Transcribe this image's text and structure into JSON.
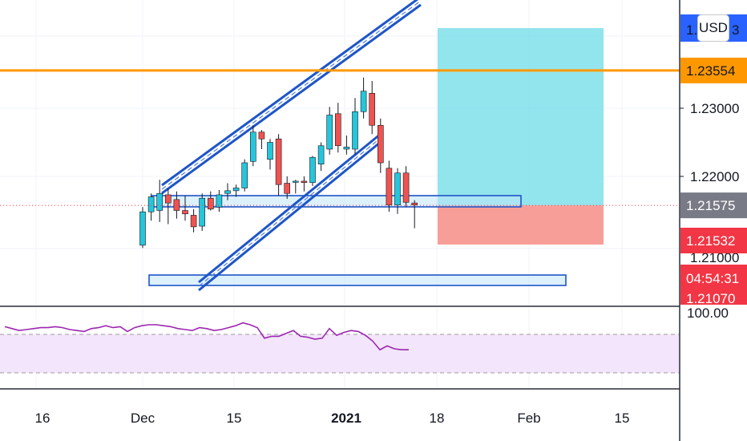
{
  "currency_button": "USD",
  "price_axis": {
    "ticks": [
      "1.23000",
      "1.22000"
    ],
    "partial_top_label": "1.",
    "partial_top_suffix": "3",
    "partial_hidden_label": "1.21000",
    "partial_bottom_label": "1.21070"
  },
  "price_badges": {
    "resistance": {
      "text": "1.23554",
      "bg": "#ff9800",
      "fg": "#131722"
    },
    "current": {
      "text": "1.21575",
      "bg": "#787b86",
      "fg": "#ffffff"
    },
    "last": {
      "text": "1.21532",
      "bg": "#f23645",
      "fg": "#ffffff"
    },
    "countdown": {
      "text": "04:54:31",
      "bg": "#f23645",
      "fg": "#ffffff"
    }
  },
  "indicator_axis": {
    "tick": "100.00"
  },
  "time_axis": {
    "labels": [
      "16",
      "Dec",
      "15",
      "2021",
      "18",
      "Feb",
      "15"
    ],
    "bold_label": "2021"
  },
  "colors": {
    "up": "#26c6da",
    "down": "#ef5350",
    "wick": "#131722",
    "channel": "#1e55c8",
    "resistance": "#ff9800",
    "current_line": "#f23645",
    "target_zone": "#7fdfea",
    "stop_zone": "#f7938e",
    "rsi_line": "#9c27b0",
    "rsi_band": "#f3e5fb"
  },
  "chart_data": {
    "type": "candlestick",
    "instrument_quote": "USD",
    "resistance_level": 1.23554,
    "current_price": 1.21575,
    "last_price": 1.21532,
    "candles": [
      {
        "o": 1.2099,
        "h": 1.2155,
        "l": 1.2095,
        "c": 1.2148
      },
      {
        "o": 1.2148,
        "h": 1.2175,
        "l": 1.2135,
        "c": 1.217
      },
      {
        "o": 1.215,
        "h": 1.2195,
        "l": 1.2133,
        "c": 1.2175
      },
      {
        "o": 1.2173,
        "h": 1.2182,
        "l": 1.213,
        "c": 1.2161
      },
      {
        "o": 1.2166,
        "h": 1.2178,
        "l": 1.2138,
        "c": 1.215
      },
      {
        "o": 1.215,
        "h": 1.2172,
        "l": 1.2135,
        "c": 1.2145
      },
      {
        "o": 1.2143,
        "h": 1.2152,
        "l": 1.2118,
        "c": 1.2126
      },
      {
        "o": 1.2127,
        "h": 1.2175,
        "l": 1.212,
        "c": 1.2168
      },
      {
        "o": 1.2168,
        "h": 1.2178,
        "l": 1.215,
        "c": 1.2152
      },
      {
        "o": 1.2155,
        "h": 1.218,
        "l": 1.2148,
        "c": 1.2173
      },
      {
        "o": 1.2175,
        "h": 1.219,
        "l": 1.2165,
        "c": 1.2179
      },
      {
        "o": 1.2179,
        "h": 1.2188,
        "l": 1.217,
        "c": 1.2183
      },
      {
        "o": 1.2183,
        "h": 1.2225,
        "l": 1.2178,
        "c": 1.222
      },
      {
        "o": 1.2222,
        "h": 1.2275,
        "l": 1.2215,
        "c": 1.2265
      },
      {
        "o": 1.2265,
        "h": 1.2268,
        "l": 1.224,
        "c": 1.2255
      },
      {
        "o": 1.2225,
        "h": 1.2255,
        "l": 1.221,
        "c": 1.225
      },
      {
        "o": 1.2255,
        "h": 1.2262,
        "l": 1.2172,
        "c": 1.2188
      },
      {
        "o": 1.219,
        "h": 1.22,
        "l": 1.2167,
        "c": 1.2175
      },
      {
        "o": 1.2192,
        "h": 1.2195,
        "l": 1.2175,
        "c": 1.2193
      },
      {
        "o": 1.2193,
        "h": 1.22,
        "l": 1.2178,
        "c": 1.2191
      },
      {
        "o": 1.2191,
        "h": 1.223,
        "l": 1.2186,
        "c": 1.2228
      },
      {
        "o": 1.2218,
        "h": 1.225,
        "l": 1.2208,
        "c": 1.2245
      },
      {
        "o": 1.224,
        "h": 1.2302,
        "l": 1.2232,
        "c": 1.229
      },
      {
        "o": 1.2292,
        "h": 1.2308,
        "l": 1.2235,
        "c": 1.2245
      },
      {
        "o": 1.224,
        "h": 1.226,
        "l": 1.2232,
        "c": 1.2243
      },
      {
        "o": 1.224,
        "h": 1.2315,
        "l": 1.2232,
        "c": 1.2295
      },
      {
        "o": 1.2295,
        "h": 1.2345,
        "l": 1.2285,
        "c": 1.2325
      },
      {
        "o": 1.2322,
        "h": 1.234,
        "l": 1.2262,
        "c": 1.2275
      },
      {
        "o": 1.2275,
        "h": 1.2285,
        "l": 1.2205,
        "c": 1.222
      },
      {
        "o": 1.2212,
        "h": 1.2223,
        "l": 1.2148,
        "c": 1.2158
      },
      {
        "o": 1.2158,
        "h": 1.2212,
        "l": 1.2145,
        "c": 1.2205
      },
      {
        "o": 1.2205,
        "h": 1.2215,
        "l": 1.2155,
        "c": 1.2162
      },
      {
        "o": 1.2161,
        "h": 1.2165,
        "l": 1.2124,
        "c": 1.2158
      }
    ],
    "rsi": [
      78,
      76,
      74,
      75,
      76,
      77,
      77,
      78,
      77,
      75,
      74,
      73,
      76,
      77,
      79,
      77,
      78,
      73,
      77,
      79,
      80,
      80,
      79,
      78,
      76,
      75,
      74,
      77,
      76,
      74,
      75,
      77,
      79,
      82,
      80,
      77,
      66,
      68,
      68,
      71,
      74,
      68,
      67,
      65,
      66,
      76,
      69,
      72,
      74,
      73,
      69,
      63,
      54,
      58,
      55,
      54,
      54
    ],
    "rsi_bands": [
      70,
      30
    ]
  }
}
